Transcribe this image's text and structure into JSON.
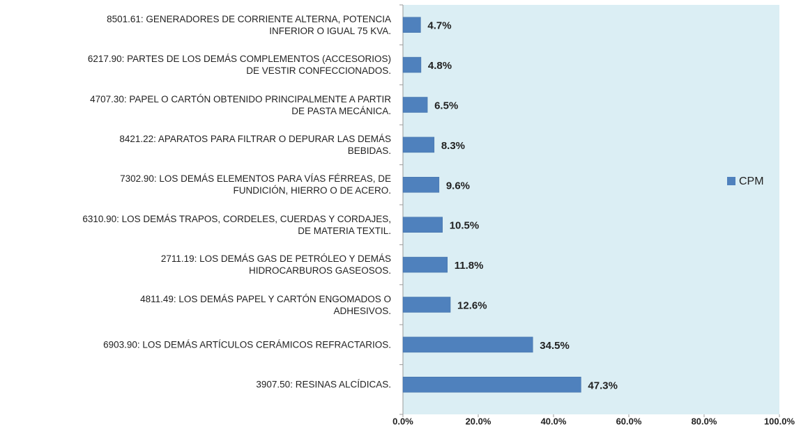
{
  "chart_data": {
    "type": "hbar",
    "categories": [
      "8501.61: GENERADORES DE CORRIENTE ALTERNA, POTENCIA\nINFERIOR O IGUAL 75 KVA.",
      "6217.90: PARTES DE LOS DEMÁS COMPLEMENTOS (ACCESORIOS)\nDE VESTIR CONFECCIONADOS.",
      "4707.30: PAPEL O CARTÓN OBTENIDO PRINCIPALMENTE A PARTIR\nDE PASTA MECÁNICA.",
      "8421.22: APARATOS PARA FILTRAR O DEPURAR LAS DEMÁS\nBEBIDAS.",
      "7302.90: LOS DEMÁS ELEMENTOS PARA VÍAS FÉRREAS, DE\nFUNDICIÓN, HIERRO O DE ACERO.",
      "6310.90: LOS DEMÁS TRAPOS, CORDELES, CUERDAS Y CORDAJES,\nDE MATERIA TEXTIL.",
      "2711.19: LOS DEMÁS GAS DE PETRÓLEO Y DEMÁS\nHIDROCARBUROS GASEOSOS.",
      "4811.49: LOS DEMÁS PAPEL Y CARTÓN ENGOMADOS O\nADHESIVOS.",
      "6903.90: LOS DEMÁS ARTÍCULOS CERÁMICOS REFRACTARIOS.",
      "3907.50: RESINAS ALCÍDICAS."
    ],
    "series": [
      {
        "name": "CPM",
        "color": "#4f81bd",
        "values": [
          4.7,
          4.8,
          6.5,
          8.3,
          9.6,
          10.5,
          11.8,
          12.6,
          34.5,
          47.3
        ],
        "value_labels": [
          "4.7%",
          "4.8%",
          "6.5%",
          "8.3%",
          "9.6%",
          "10.5%",
          "11.8%",
          "12.6%",
          "34.5%",
          "47.3%"
        ]
      }
    ],
    "xlim": [
      0,
      100
    ],
    "xticks": [
      {
        "value": 0,
        "label": "0.0%"
      },
      {
        "value": 20,
        "label": "20.0%"
      },
      {
        "value": 40,
        "label": "40.0%"
      },
      {
        "value": 60,
        "label": "60.0%"
      },
      {
        "value": 80,
        "label": "80.0%"
      },
      {
        "value": 100,
        "label": "100.0%"
      }
    ],
    "legend": "right",
    "background": "#dbeef4"
  }
}
